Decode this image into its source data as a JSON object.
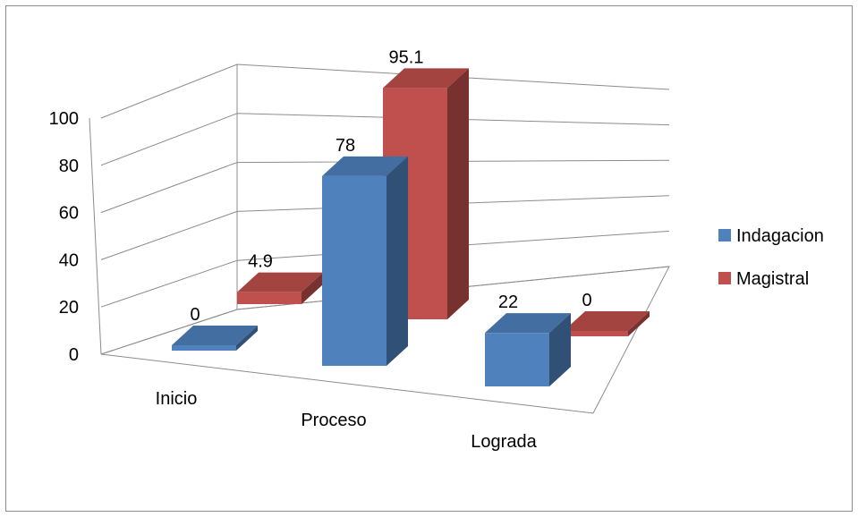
{
  "chart_data": {
    "type": "bar",
    "categories": [
      "Inicio",
      "Proceso",
      "Lograda"
    ],
    "series": [
      {
        "name": "Indagacion",
        "values": [
          0,
          78,
          22
        ],
        "color": "#4f81bd"
      },
      {
        "name": "Magistral",
        "values": [
          4.9,
          95.1,
          0
        ],
        "color": "#c0504d"
      }
    ],
    "ylim": [
      0,
      100
    ],
    "yticks": [
      0,
      20,
      40,
      60,
      80,
      100
    ],
    "data_labels": [
      [
        "0",
        "78",
        "22"
      ],
      [
        "4.9",
        "95.1",
        "0"
      ]
    ],
    "legend_position": "right",
    "grid": true,
    "three_d": true
  }
}
